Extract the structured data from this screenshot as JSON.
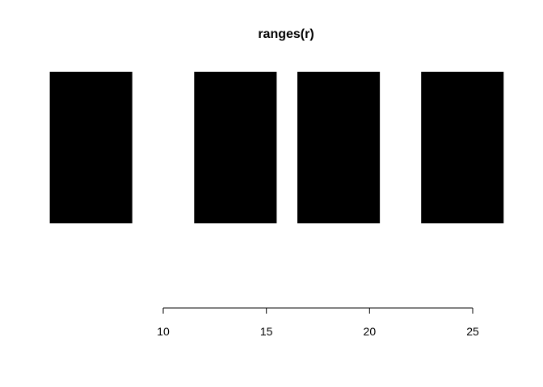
{
  "chart_data": {
    "type": "bar",
    "title": "ranges(r)",
    "xlabel": "",
    "ylabel": "",
    "ranges": [
      {
        "start": 5,
        "end": 8
      },
      {
        "start": 12,
        "end": 15
      },
      {
        "start": 17,
        "end": 20
      },
      {
        "start": 23,
        "end": 26
      }
    ],
    "x_ticks": [
      10,
      15,
      20,
      25
    ],
    "x_tick_labels": [
      "10",
      "15",
      "20",
      "25"
    ],
    "grid": false,
    "bar_color": "#000000"
  }
}
